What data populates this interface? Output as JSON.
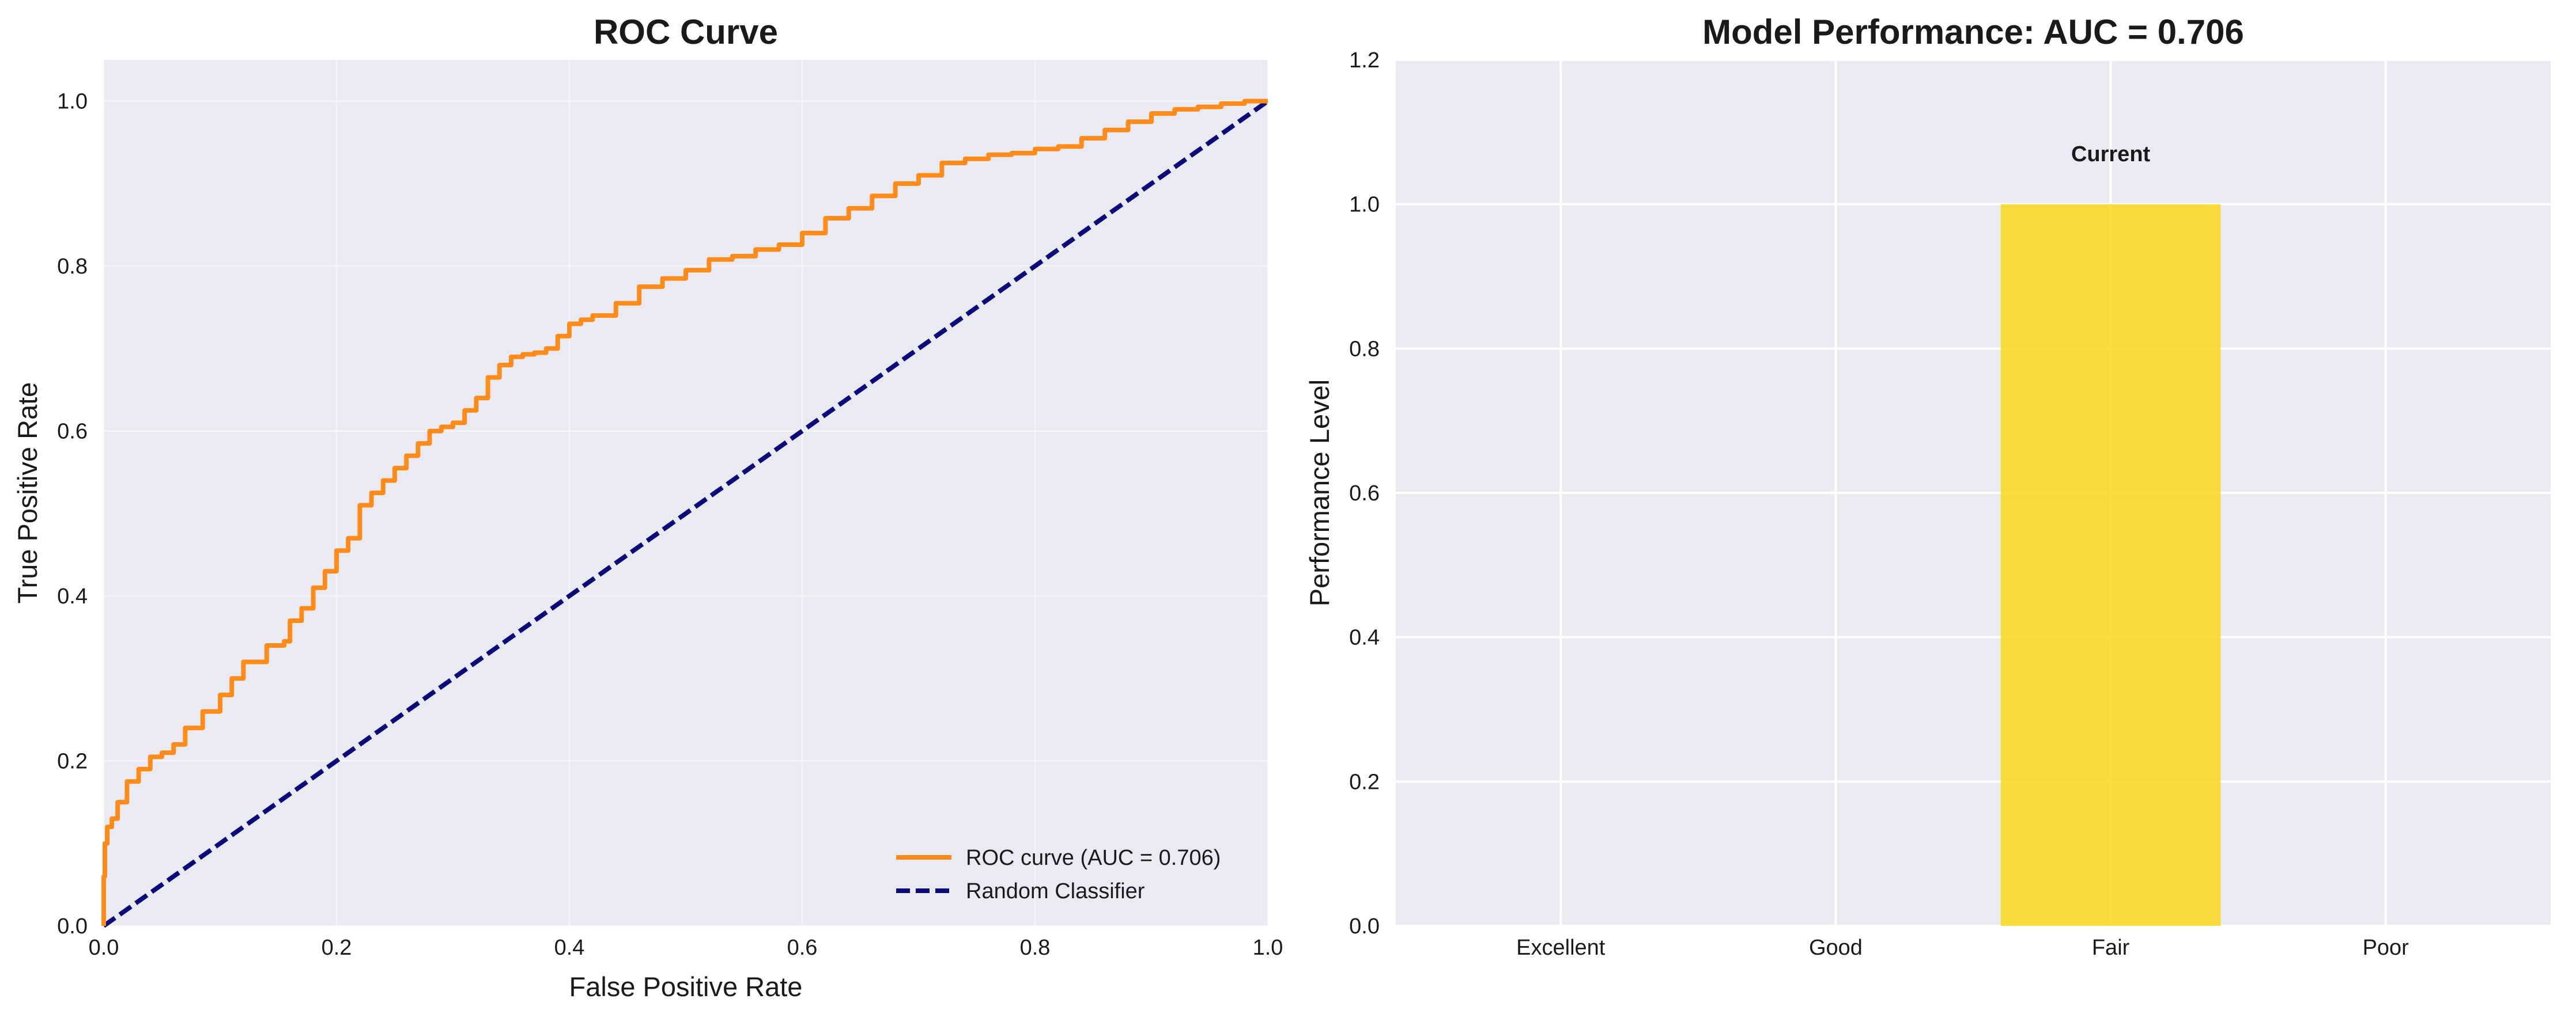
{
  "colors": {
    "panel_bg": "#EAEAF2",
    "grid": "#FFFFFF",
    "roc": "#FF8C1A",
    "random": "#0A0A7A",
    "bar_current": "#F9D71C"
  },
  "chart_data": [
    {
      "type": "line",
      "title": "ROC Curve",
      "xlabel": "False Positive Rate",
      "ylabel": "True Positive Rate",
      "xlim": [
        0.0,
        1.0
      ],
      "ylim": [
        0.0,
        1.05
      ],
      "xticks": [
        "0.0",
        "0.2",
        "0.4",
        "0.6",
        "0.8",
        "1.0"
      ],
      "yticks": [
        "0.0",
        "0.2",
        "0.4",
        "0.6",
        "0.8",
        "1.0"
      ],
      "grid": true,
      "legend_position": "lower-right",
      "series": [
        {
          "name": "ROC curve (AUC = 0.706)",
          "style": "solid",
          "points": [
            [
              0.0,
              0.0
            ],
            [
              0.001,
              0.06
            ],
            [
              0.003,
              0.1
            ],
            [
              0.007,
              0.12
            ],
            [
              0.012,
              0.13
            ],
            [
              0.02,
              0.15
            ],
            [
              0.03,
              0.175
            ],
            [
              0.04,
              0.19
            ],
            [
              0.05,
              0.205
            ],
            [
              0.06,
              0.21
            ],
            [
              0.07,
              0.22
            ],
            [
              0.085,
              0.24
            ],
            [
              0.1,
              0.26
            ],
            [
              0.11,
              0.28
            ],
            [
              0.12,
              0.3
            ],
            [
              0.14,
              0.32
            ],
            [
              0.155,
              0.34
            ],
            [
              0.16,
              0.345
            ],
            [
              0.17,
              0.37
            ],
            [
              0.18,
              0.385
            ],
            [
              0.19,
              0.41
            ],
            [
              0.2,
              0.43
            ],
            [
              0.21,
              0.455
            ],
            [
              0.22,
              0.47
            ],
            [
              0.23,
              0.51
            ],
            [
              0.24,
              0.525
            ],
            [
              0.25,
              0.54
            ],
            [
              0.26,
              0.555
            ],
            [
              0.27,
              0.57
            ],
            [
              0.28,
              0.585
            ],
            [
              0.29,
              0.6
            ],
            [
              0.3,
              0.605
            ],
            [
              0.31,
              0.61
            ],
            [
              0.32,
              0.625
            ],
            [
              0.33,
              0.64
            ],
            [
              0.34,
              0.665
            ],
            [
              0.35,
              0.68
            ],
            [
              0.36,
              0.69
            ],
            [
              0.37,
              0.693
            ],
            [
              0.38,
              0.695
            ],
            [
              0.39,
              0.7
            ],
            [
              0.4,
              0.715
            ],
            [
              0.41,
              0.73
            ],
            [
              0.42,
              0.735
            ],
            [
              0.44,
              0.74
            ],
            [
              0.46,
              0.755
            ],
            [
              0.48,
              0.775
            ],
            [
              0.5,
              0.785
            ],
            [
              0.52,
              0.795
            ],
            [
              0.54,
              0.808
            ],
            [
              0.56,
              0.812
            ],
            [
              0.58,
              0.82
            ],
            [
              0.6,
              0.826
            ],
            [
              0.62,
              0.84
            ],
            [
              0.64,
              0.858
            ],
            [
              0.66,
              0.87
            ],
            [
              0.68,
              0.885
            ],
            [
              0.7,
              0.9
            ],
            [
              0.72,
              0.91
            ],
            [
              0.74,
              0.925
            ],
            [
              0.76,
              0.93
            ],
            [
              0.78,
              0.935
            ],
            [
              0.8,
              0.937
            ],
            [
              0.82,
              0.942
            ],
            [
              0.84,
              0.945
            ],
            [
              0.86,
              0.955
            ],
            [
              0.88,
              0.965
            ],
            [
              0.9,
              0.975
            ],
            [
              0.92,
              0.985
            ],
            [
              0.94,
              0.99
            ],
            [
              0.96,
              0.993
            ],
            [
              0.98,
              0.997
            ],
            [
              1.0,
              1.0
            ]
          ]
        },
        {
          "name": "Random Classifier",
          "style": "dashed",
          "points": [
            [
              0.0,
              0.0
            ],
            [
              1.0,
              1.0
            ]
          ]
        }
      ]
    },
    {
      "type": "bar",
      "title": "Model Performance: AUC = 0.706",
      "xlabel": "",
      "ylabel": "Performance Level",
      "ylim": [
        0.0,
        1.2
      ],
      "yticks": [
        "0.0",
        "0.2",
        "0.4",
        "0.6",
        "0.8",
        "1.0",
        "1.2"
      ],
      "grid": true,
      "categories": [
        "Excellent",
        "Good",
        "Fair",
        "Poor"
      ],
      "values": [
        0,
        0,
        1.0,
        0
      ],
      "annotation": {
        "category": "Fair",
        "text": "Current"
      }
    }
  ]
}
